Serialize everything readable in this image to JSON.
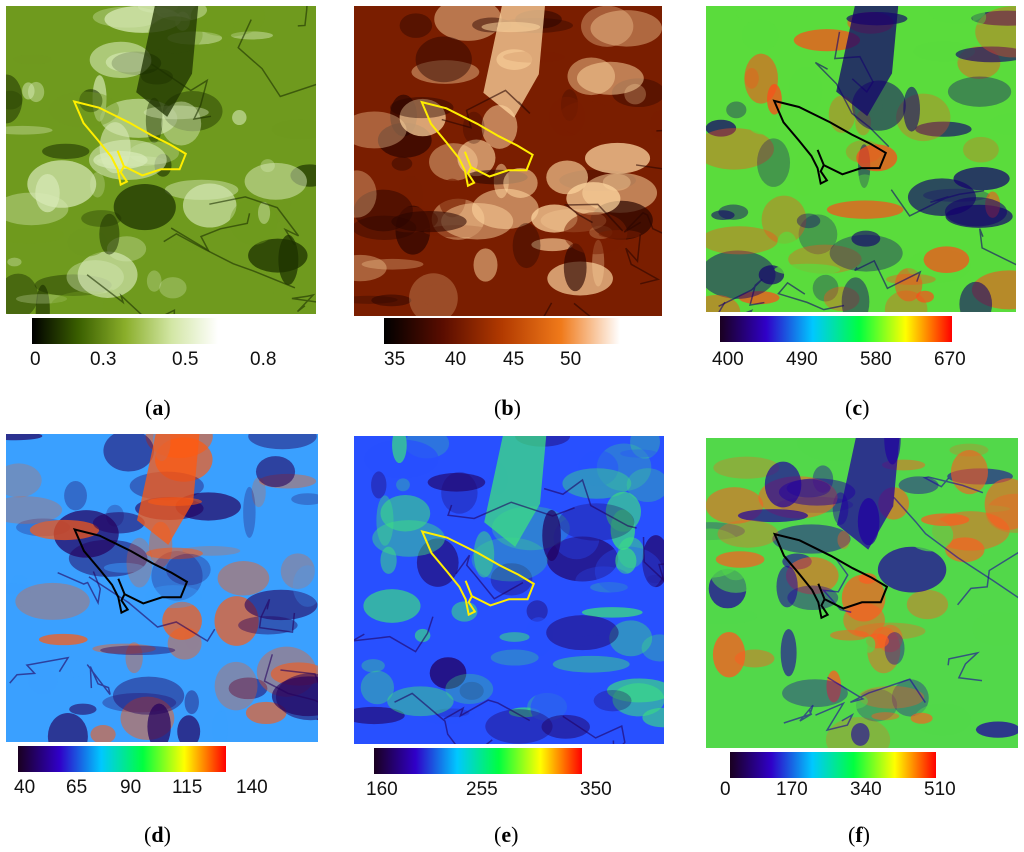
{
  "panels": [
    {
      "id": "a",
      "caption_letter": "a",
      "colorbar": {
        "colors": [
          "#000000",
          "#3a5f00",
          "#8aae2a",
          "#d2e6a4",
          "#ffffff"
        ],
        "ticks": [
          "0",
          "0.3",
          "0.5",
          "0.8"
        ]
      },
      "map_colors": {
        "base": "#6f9a1e",
        "light": "#d8eab8",
        "dark": "#1c3000",
        "outline": "#ffee00"
      }
    },
    {
      "id": "b",
      "caption_letter": "b",
      "colorbar": {
        "colors": [
          "#000000",
          "#5a0d00",
          "#b23a00",
          "#f07a1a",
          "#ffffff"
        ],
        "ticks": [
          "35",
          "40",
          "45",
          "50"
        ]
      },
      "map_colors": {
        "base": "#7a1e00",
        "light": "#ffd7a0",
        "dark": "#2a0500",
        "outline": "#ffee00"
      }
    },
    {
      "id": "c",
      "caption_letter": "c",
      "colorbar": {
        "colors": [
          "#1a0020",
          "#3000c8",
          "#00c8ff",
          "#00ff40",
          "#ffff00",
          "#ff0000"
        ],
        "ticks": [
          "400",
          "490",
          "580",
          "670"
        ]
      },
      "map_colors": {
        "base": "#5adc3c",
        "light": "#ff4a1a",
        "dark": "#14006e",
        "outline": "#000000"
      }
    },
    {
      "id": "d",
      "caption_letter": "d",
      "colorbar": {
        "colors": [
          "#1a0020",
          "#3000c8",
          "#00c8ff",
          "#00ff40",
          "#ffff00",
          "#ff0000"
        ],
        "ticks": [
          "40",
          "65",
          "90",
          "115",
          "140"
        ]
      },
      "map_colors": {
        "base": "#3aa0ff",
        "light": "#ff5a10",
        "dark": "#24005e",
        "outline": "#000000"
      }
    },
    {
      "id": "e",
      "caption_letter": "e",
      "colorbar": {
        "colors": [
          "#1a0020",
          "#3000c8",
          "#00c8ff",
          "#00ff40",
          "#ffff00",
          "#ff0000"
        ],
        "ticks": [
          "160",
          "255",
          "350"
        ]
      },
      "map_colors": {
        "base": "#2850ff",
        "light": "#3ce080",
        "dark": "#220060",
        "outline": "#ffee00"
      }
    },
    {
      "id": "f",
      "caption_letter": "f",
      "colorbar": {
        "colors": [
          "#1a0020",
          "#3000c8",
          "#00c8ff",
          "#00ff40",
          "#ffff00",
          "#ff0000"
        ],
        "ticks": [
          "0",
          "170",
          "340",
          "510"
        ]
      },
      "map_colors": {
        "base": "#52d84a",
        "light": "#ff5a20",
        "dark": "#2000a0",
        "outline": "#000000"
      }
    }
  ]
}
